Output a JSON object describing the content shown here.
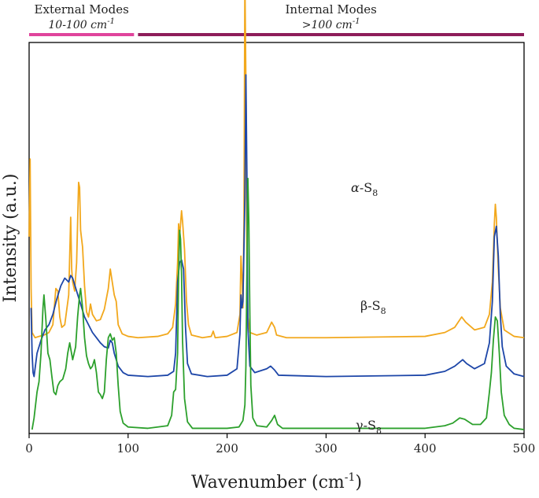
{
  "chart_data": {
    "type": "line",
    "title": "",
    "xlabel": "Wavenumber (cm",
    "xlabel_sup": "-1",
    "xlabel_close": ")",
    "ylabel": "Intensity (a.u.)",
    "xlim": [
      0,
      500
    ],
    "xticks": [
      "0",
      "100",
      "200",
      "300",
      "400",
      "500"
    ],
    "xtick_values": [
      0,
      100,
      200,
      300,
      400,
      500
    ],
    "grid": false,
    "legend": "none",
    "mode_bands": [
      {
        "label": "External Modes",
        "range_label": "10-100 cm",
        "sup": "-1",
        "x_range": [
          0,
          106
        ],
        "color": "#e0449c"
      },
      {
        "label": "Internal Modes",
        "range_label": ">100 cm",
        "sup": "-1",
        "x_range": [
          110,
          500
        ],
        "color": "#8e1d5a"
      }
    ],
    "series": [
      {
        "label_greek": "α",
        "label_main": "-S",
        "label_sub": "8",
        "color": "#f2a81d",
        "baseline": 0.7,
        "points": [
          [
            0,
            0.8
          ],
          [
            1,
            1.4
          ],
          [
            2,
            0.4
          ],
          [
            3,
            0.06
          ],
          [
            6,
            0.02
          ],
          [
            10,
            0.03
          ],
          [
            15,
            0.04
          ],
          [
            20,
            0.06
          ],
          [
            24,
            0.12
          ],
          [
            27,
            0.4
          ],
          [
            29,
            0.38
          ],
          [
            31,
            0.18
          ],
          [
            33,
            0.1
          ],
          [
            36,
            0.12
          ],
          [
            40,
            0.35
          ],
          [
            42,
            0.95
          ],
          [
            43,
            0.55
          ],
          [
            44,
            0.45
          ],
          [
            46,
            0.38
          ],
          [
            48,
            0.6
          ],
          [
            50,
            1.22
          ],
          [
            51,
            1.18
          ],
          [
            52,
            0.85
          ],
          [
            54,
            0.72
          ],
          [
            56,
            0.42
          ],
          [
            58,
            0.22
          ],
          [
            60,
            0.18
          ],
          [
            62,
            0.28
          ],
          [
            64,
            0.2
          ],
          [
            68,
            0.15
          ],
          [
            72,
            0.16
          ],
          [
            76,
            0.24
          ],
          [
            80,
            0.4
          ],
          [
            82,
            0.55
          ],
          [
            84,
            0.45
          ],
          [
            86,
            0.35
          ],
          [
            88,
            0.3
          ],
          [
            90,
            0.12
          ],
          [
            94,
            0.05
          ],
          [
            100,
            0.03
          ],
          [
            110,
            0.02
          ],
          [
            130,
            0.03
          ],
          [
            140,
            0.05
          ],
          [
            145,
            0.1
          ],
          [
            148,
            0.28
          ],
          [
            150,
            0.6
          ],
          [
            151,
            0.9
          ],
          [
            152,
            0.8
          ],
          [
            154,
            1.0
          ],
          [
            155,
            0.92
          ],
          [
            157,
            0.7
          ],
          [
            159,
            0.3
          ],
          [
            161,
            0.12
          ],
          [
            164,
            0.04
          ],
          [
            175,
            0.02
          ],
          [
            184,
            0.03
          ],
          [
            186,
            0.07
          ],
          [
            188,
            0.02
          ],
          [
            200,
            0.03
          ],
          [
            210,
            0.06
          ],
          [
            213,
            0.2
          ],
          [
            214,
            0.65
          ],
          [
            215,
            0.5
          ],
          [
            216,
            0.25
          ],
          [
            217,
            0.9
          ],
          [
            218,
            2.8
          ],
          [
            219,
            2.0
          ],
          [
            220,
            0.6
          ],
          [
            221,
            0.18
          ],
          [
            223,
            0.06
          ],
          [
            230,
            0.04
          ],
          [
            240,
            0.06
          ],
          [
            245,
            0.14
          ],
          [
            248,
            0.1
          ],
          [
            250,
            0.04
          ],
          [
            260,
            0.02
          ],
          [
            300,
            0.02
          ],
          [
            400,
            0.03
          ],
          [
            420,
            0.06
          ],
          [
            430,
            0.1
          ],
          [
            437,
            0.18
          ],
          [
            441,
            0.14
          ],
          [
            450,
            0.08
          ],
          [
            460,
            0.1
          ],
          [
            465,
            0.2
          ],
          [
            468,
            0.45
          ],
          [
            470,
            0.9
          ],
          [
            471,
            1.05
          ],
          [
            472,
            0.95
          ],
          [
            474,
            0.55
          ],
          [
            476,
            0.25
          ],
          [
            480,
            0.08
          ],
          [
            490,
            0.03
          ],
          [
            500,
            0.02
          ]
        ]
      },
      {
        "label_greek": "β",
        "label_main": "-S",
        "label_sub": "8",
        "color": "#1d46a8",
        "baseline": 0.4,
        "points": [
          [
            2,
            0.55
          ],
          [
            3,
            0.2
          ],
          [
            4,
            0.05
          ],
          [
            5,
            0.02
          ],
          [
            6,
            0.08
          ],
          [
            8,
            0.2
          ],
          [
            12,
            0.3
          ],
          [
            16,
            0.38
          ],
          [
            20,
            0.42
          ],
          [
            24,
            0.5
          ],
          [
            28,
            0.62
          ],
          [
            32,
            0.72
          ],
          [
            36,
            0.78
          ],
          [
            40,
            0.75
          ],
          [
            42,
            0.8
          ],
          [
            44,
            0.78
          ],
          [
            48,
            0.68
          ],
          [
            52,
            0.58
          ],
          [
            56,
            0.48
          ],
          [
            60,
            0.42
          ],
          [
            64,
            0.36
          ],
          [
            68,
            0.32
          ],
          [
            72,
            0.28
          ],
          [
            76,
            0.25
          ],
          [
            80,
            0.24
          ],
          [
            82,
            0.3
          ],
          [
            84,
            0.28
          ],
          [
            86,
            0.2
          ],
          [
            90,
            0.1
          ],
          [
            95,
            0.05
          ],
          [
            100,
            0.03
          ],
          [
            120,
            0.02
          ],
          [
            140,
            0.03
          ],
          [
            146,
            0.06
          ],
          [
            148,
            0.2
          ],
          [
            150,
            0.75
          ],
          [
            152,
            0.9
          ],
          [
            154,
            0.92
          ],
          [
            156,
            0.85
          ],
          [
            158,
            0.4
          ],
          [
            160,
            0.12
          ],
          [
            164,
            0.04
          ],
          [
            180,
            0.02
          ],
          [
            200,
            0.03
          ],
          [
            210,
            0.08
          ],
          [
            213,
            0.35
          ],
          [
            214,
            0.65
          ],
          [
            215,
            0.55
          ],
          [
            216,
            0.6
          ],
          [
            218,
            1.4
          ],
          [
            219,
            2.35
          ],
          [
            220,
            1.6
          ],
          [
            221,
            0.4
          ],
          [
            223,
            0.1
          ],
          [
            228,
            0.05
          ],
          [
            240,
            0.08
          ],
          [
            244,
            0.1
          ],
          [
            248,
            0.07
          ],
          [
            252,
            0.03
          ],
          [
            300,
            0.02
          ],
          [
            400,
            0.03
          ],
          [
            420,
            0.06
          ],
          [
            430,
            0.1
          ],
          [
            438,
            0.15
          ],
          [
            442,
            0.12
          ],
          [
            450,
            0.08
          ],
          [
            460,
            0.12
          ],
          [
            465,
            0.28
          ],
          [
            468,
            0.6
          ],
          [
            470,
            1.1
          ],
          [
            472,
            1.18
          ],
          [
            474,
            0.95
          ],
          [
            476,
            0.5
          ],
          [
            478,
            0.25
          ],
          [
            482,
            0.1
          ],
          [
            490,
            0.04
          ],
          [
            500,
            0.02
          ]
        ]
      },
      {
        "label_greek": "γ",
        "label_main": "-S",
        "label_sub": "8",
        "color": "#2ca02c",
        "baseline": 0.0,
        "points": [
          [
            3,
            0.01
          ],
          [
            5,
            0.1
          ],
          [
            8,
            0.3
          ],
          [
            10,
            0.38
          ],
          [
            12,
            0.6
          ],
          [
            14,
            0.95
          ],
          [
            15,
            1.05
          ],
          [
            17,
            0.85
          ],
          [
            19,
            0.6
          ],
          [
            21,
            0.55
          ],
          [
            23,
            0.42
          ],
          [
            25,
            0.3
          ],
          [
            27,
            0.28
          ],
          [
            29,
            0.35
          ],
          [
            31,
            0.38
          ],
          [
            34,
            0.4
          ],
          [
            37,
            0.48
          ],
          [
            39,
            0.6
          ],
          [
            41,
            0.68
          ],
          [
            44,
            0.55
          ],
          [
            47,
            0.65
          ],
          [
            49,
            0.88
          ],
          [
            51,
            1.05
          ],
          [
            52,
            1.1
          ],
          [
            54,
            0.95
          ],
          [
            56,
            0.72
          ],
          [
            58,
            0.58
          ],
          [
            60,
            0.52
          ],
          [
            62,
            0.48
          ],
          [
            64,
            0.5
          ],
          [
            66,
            0.55
          ],
          [
            68,
            0.45
          ],
          [
            70,
            0.3
          ],
          [
            72,
            0.28
          ],
          [
            74,
            0.25
          ],
          [
            76,
            0.3
          ],
          [
            78,
            0.55
          ],
          [
            80,
            0.72
          ],
          [
            82,
            0.75
          ],
          [
            84,
            0.7
          ],
          [
            86,
            0.72
          ],
          [
            88,
            0.6
          ],
          [
            90,
            0.35
          ],
          [
            92,
            0.15
          ],
          [
            95,
            0.06
          ],
          [
            100,
            0.03
          ],
          [
            120,
            0.02
          ],
          [
            140,
            0.04
          ],
          [
            144,
            0.12
          ],
          [
            146,
            0.3
          ],
          [
            148,
            0.32
          ],
          [
            150,
            0.6
          ],
          [
            151,
            1.2
          ],
          [
            152,
            1.55
          ],
          [
            153,
            1.48
          ],
          [
            154,
            1.2
          ],
          [
            155,
            0.7
          ],
          [
            157,
            0.25
          ],
          [
            160,
            0.07
          ],
          [
            165,
            0.02
          ],
          [
            175,
            0.02
          ],
          [
            200,
            0.02
          ],
          [
            212,
            0.03
          ],
          [
            216,
            0.08
          ],
          [
            218,
            0.2
          ],
          [
            219,
            0.5
          ],
          [
            220,
            1.2
          ],
          [
            221,
            1.95
          ],
          [
            222,
            1.6
          ],
          [
            223,
            0.9
          ],
          [
            224,
            0.35
          ],
          [
            226,
            0.1
          ],
          [
            230,
            0.04
          ],
          [
            240,
            0.03
          ],
          [
            245,
            0.08
          ],
          [
            248,
            0.12
          ],
          [
            251,
            0.05
          ],
          [
            256,
            0.02
          ],
          [
            300,
            0.02
          ],
          [
            400,
            0.02
          ],
          [
            420,
            0.04
          ],
          [
            428,
            0.06
          ],
          [
            435,
            0.1
          ],
          [
            440,
            0.09
          ],
          [
            448,
            0.05
          ],
          [
            456,
            0.05
          ],
          [
            462,
            0.1
          ],
          [
            465,
            0.3
          ],
          [
            467,
            0.45
          ],
          [
            469,
            0.7
          ],
          [
            471,
            0.88
          ],
          [
            473,
            0.85
          ],
          [
            475,
            0.6
          ],
          [
            477,
            0.3
          ],
          [
            480,
            0.12
          ],
          [
            485,
            0.05
          ],
          [
            490,
            0.02
          ],
          [
            500,
            0.01
          ]
        ]
      }
    ]
  }
}
